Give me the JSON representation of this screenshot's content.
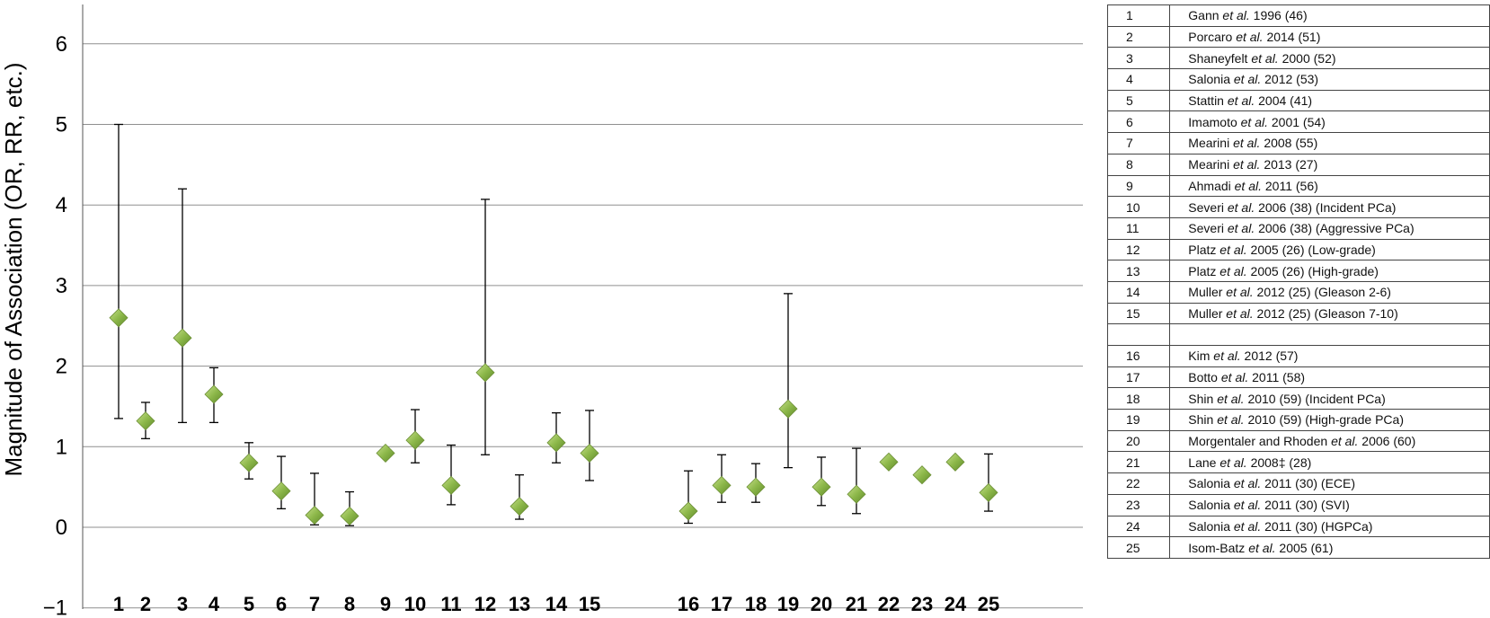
{
  "chart_data": {
    "type": "scatter",
    "ylabel": "Magnitude of Association (OR, RR, etc.)",
    "xlabel": "",
    "ylim": [
      -1,
      6.5
    ],
    "yticks": [
      {
        "value": 6,
        "label": "6"
      },
      {
        "value": 5,
        "label": "5"
      },
      {
        "value": 4,
        "label": "4"
      },
      {
        "value": 3,
        "label": "3"
      },
      {
        "value": 2,
        "label": "2"
      },
      {
        "value": 1,
        "label": "1"
      },
      {
        "value": 0,
        "label": "0"
      },
      {
        "value": -1,
        "label": "−1"
      }
    ],
    "grid": true,
    "marker": "diamond",
    "marker_color": "#8db84a",
    "points": [
      {
        "label": "1",
        "value": 2.6,
        "lower": 1.35,
        "upper": 5.0
      },
      {
        "label": "2",
        "value": 1.32,
        "lower": 1.1,
        "upper": 1.55
      },
      {
        "label": "3",
        "value": 2.35,
        "lower": 1.3,
        "upper": 4.2
      },
      {
        "label": "4",
        "value": 1.65,
        "lower": 1.3,
        "upper": 1.98
      },
      {
        "label": "5",
        "value": 0.8,
        "lower": 0.6,
        "upper": 1.05
      },
      {
        "label": "6",
        "value": 0.45,
        "lower": 0.23,
        "upper": 0.88
      },
      {
        "label": "7",
        "value": 0.15,
        "lower": 0.03,
        "upper": 0.67
      },
      {
        "label": "8",
        "value": 0.14,
        "lower": 0.02,
        "upper": 0.44
      },
      {
        "label": "9",
        "value": 0.92,
        "lower": null,
        "upper": null
      },
      {
        "label": "10",
        "value": 1.08,
        "lower": 0.8,
        "upper": 1.46
      },
      {
        "label": "11",
        "value": 0.52,
        "lower": 0.28,
        "upper": 1.02
      },
      {
        "label": "12",
        "value": 1.92,
        "lower": 0.9,
        "upper": 4.07
      },
      {
        "label": "13",
        "value": 0.26,
        "lower": 0.1,
        "upper": 0.65
      },
      {
        "label": "14",
        "value": 1.05,
        "lower": 0.8,
        "upper": 1.42
      },
      {
        "label": "15",
        "value": 0.92,
        "lower": 0.58,
        "upper": 1.45
      },
      {
        "label": "16",
        "value": 0.2,
        "lower": 0.05,
        "upper": 0.7
      },
      {
        "label": "17",
        "value": 0.52,
        "lower": 0.31,
        "upper": 0.9
      },
      {
        "label": "18",
        "value": 0.5,
        "lower": 0.31,
        "upper": 0.79
      },
      {
        "label": "19",
        "value": 1.47,
        "lower": 0.74,
        "upper": 2.9
      },
      {
        "label": "20",
        "value": 0.5,
        "lower": 0.27,
        "upper": 0.87
      },
      {
        "label": "21",
        "value": 0.41,
        "lower": 0.17,
        "upper": 0.98
      },
      {
        "label": "22",
        "value": 0.81,
        "lower": null,
        "upper": null
      },
      {
        "label": "23",
        "value": 0.65,
        "lower": null,
        "upper": null
      },
      {
        "label": "24",
        "value": 0.81,
        "lower": null,
        "upper": null
      },
      {
        "label": "25",
        "value": 0.43,
        "lower": 0.2,
        "upper": 0.91
      }
    ]
  },
  "legend": [
    {
      "num": "1",
      "pre": "Gann ",
      "et": "et al.",
      "post": " 1996 (46)"
    },
    {
      "num": "2",
      "pre": "Porcaro ",
      "et": "et al.",
      "post": " 2014 (51)"
    },
    {
      "num": "3",
      "pre": "Shaneyfelt ",
      "et": "et al.",
      "post": " 2000 (52)"
    },
    {
      "num": "4",
      "pre": "Salonia ",
      "et": "et al.",
      "post": " 2012 (53)"
    },
    {
      "num": "5",
      "pre": "Stattin ",
      "et": "et al.",
      "post": " 2004 (41)"
    },
    {
      "num": "6",
      "pre": "Imamoto ",
      "et": "et al.",
      "post": " 2001 (54)"
    },
    {
      "num": "7",
      "pre": "Mearini ",
      "et": "et al.",
      "post": " 2008 (55)"
    },
    {
      "num": "8",
      "pre": "Mearini ",
      "et": "et al.",
      "post": " 2013 (27)"
    },
    {
      "num": "9",
      "pre": "Ahmadi ",
      "et": "et al.",
      "post": " 2011 (56)"
    },
    {
      "num": "10",
      "pre": "Severi ",
      "et": "et al.",
      "post": " 2006 (38) (Incident PCa)"
    },
    {
      "num": "11",
      "pre": "Severi ",
      "et": "et al.",
      "post": " 2006 (38) (Aggressive PCa)"
    },
    {
      "num": "12",
      "pre": "Platz ",
      "et": "et al.",
      "post": " 2005 (26) (Low-grade)"
    },
    {
      "num": "13",
      "pre": "Platz ",
      "et": "et al.",
      "post": " 2005 (26) (High-grade)"
    },
    {
      "num": "14",
      "pre": "Muller ",
      "et": "et al.",
      "post": " 2012 (25) (Gleason 2-6)"
    },
    {
      "num": "15",
      "pre": "Muller ",
      "et": "et al.",
      "post": " 2012 (25) (Gleason 7-10)"
    },
    {
      "num": "",
      "pre": "",
      "et": "",
      "post": ""
    },
    {
      "num": "16",
      "pre": "Kim ",
      "et": "et al.",
      "post": " 2012 (57)"
    },
    {
      "num": "17",
      "pre": "Botto ",
      "et": "et al.",
      "post": " 2011 (58)"
    },
    {
      "num": "18",
      "pre": "Shin ",
      "et": "et al.",
      "post": " 2010 (59) (Incident PCa)"
    },
    {
      "num": "19",
      "pre": "Shin ",
      "et": "et al.",
      "post": " 2010 (59) (High-grade PCa)"
    },
    {
      "num": "20",
      "pre": "Morgentaler and Rhoden ",
      "et": "et al.",
      "post": " 2006 (60)"
    },
    {
      "num": "21",
      "pre": "Lane ",
      "et": "et al.",
      "post": " 2008‡ (28)"
    },
    {
      "num": "22",
      "pre": "Salonia ",
      "et": "et al.",
      "post": " 2011 (30) (ECE)"
    },
    {
      "num": "23",
      "pre": "Salonia ",
      "et": "et al.",
      "post": " 2011 (30) (SVI)"
    },
    {
      "num": "24",
      "pre": "Salonia ",
      "et": "et al.",
      "post": " 2011 (30) (HGPCa)"
    },
    {
      "num": "25",
      "pre": "Isom-Batz ",
      "et": "et al.",
      "post": " 2005 (61)"
    }
  ]
}
